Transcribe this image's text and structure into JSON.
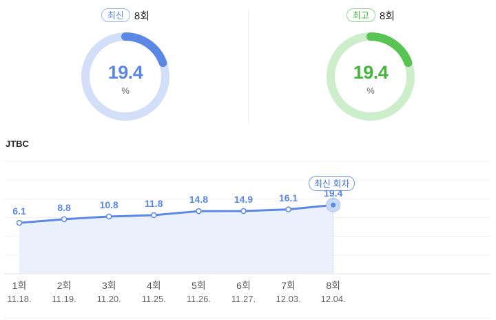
{
  "summary": {
    "latest": {
      "badge": "최신",
      "round": "8회",
      "value": "19.4",
      "unit": "%",
      "fraction": 0.194,
      "color": "#5b87e5",
      "track": "#d3def8"
    },
    "best": {
      "badge": "최고",
      "round": "8회",
      "value": "19.4",
      "unit": "%",
      "fraction": 0.194,
      "color": "#56c352",
      "track": "#cdeecb"
    }
  },
  "channel": "JTBC",
  "latest_tag": "최신 회차",
  "chart_data": {
    "type": "area",
    "series": [
      {
        "values": [
          6.1,
          8.8,
          10.8,
          11.8,
          14.8,
          14.9,
          16.1,
          19.4
        ]
      }
    ],
    "rounds": [
      "1회",
      "2회",
      "3회",
      "4회",
      "5회",
      "6회",
      "7회",
      "8회"
    ],
    "dates": [
      "11.18.",
      "11.19.",
      "11.20.",
      "11.25.",
      "11.26.",
      "11.27.",
      "12.03.",
      "12.04."
    ],
    "value_labels": [
      "6.1",
      "8.8",
      "10.8",
      "11.8",
      "14.8",
      "14.9",
      "16.1",
      "19.4"
    ],
    "ylim": [
      -32,
      52
    ],
    "grid": true,
    "line_color": "#5b87e5",
    "fill_color": "#eaf1fd"
  }
}
